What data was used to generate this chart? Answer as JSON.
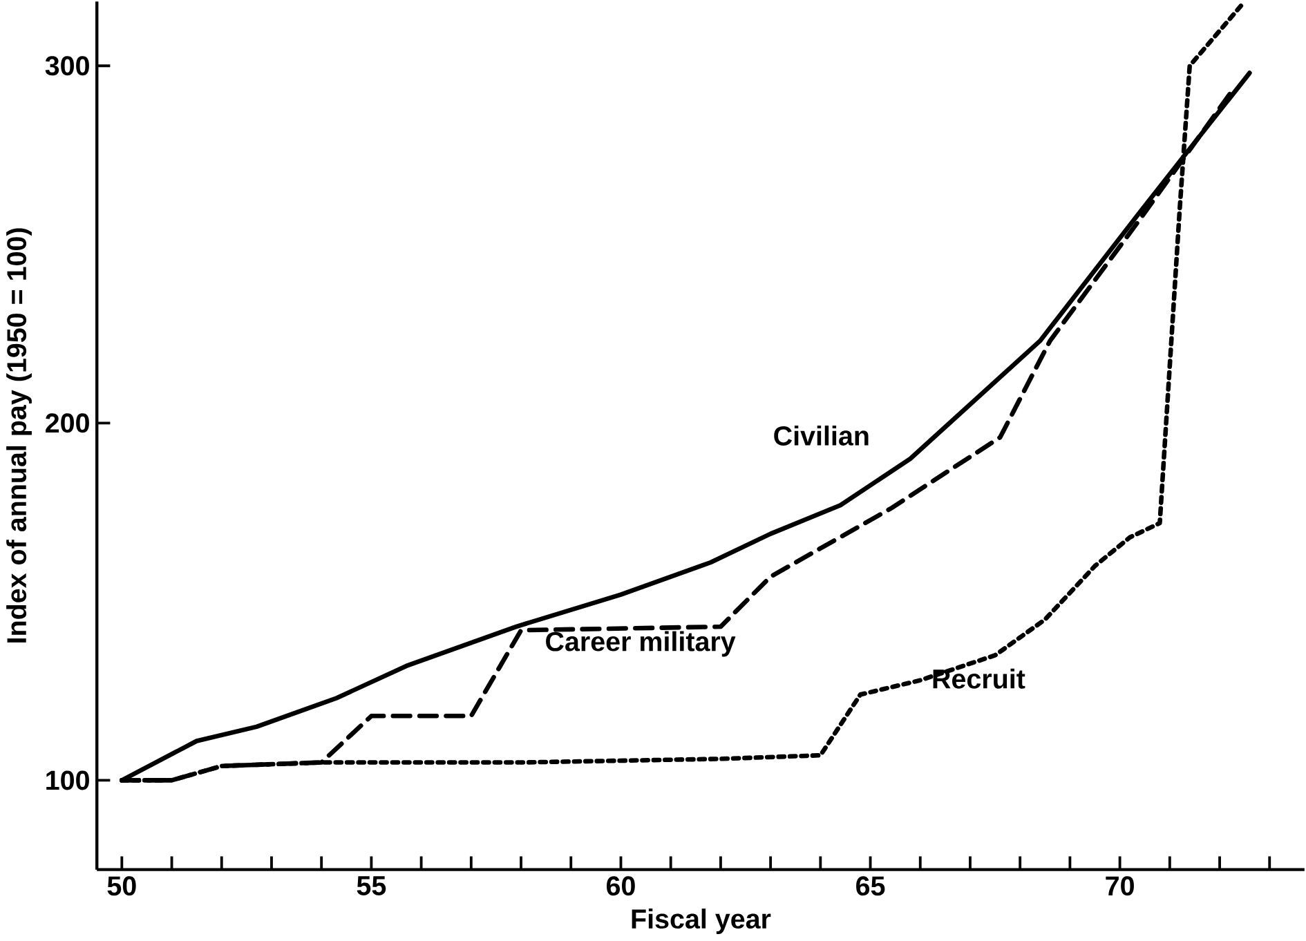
{
  "chart_data": {
    "type": "line",
    "xlabel": "Fiscal year",
    "ylabel": "Index of annual pay (1950 = 100)",
    "xlim": [
      49.5,
      73.7
    ],
    "ylim": [
      75,
      318
    ],
    "xticks": [
      50,
      {
        "value": 51,
        "label": null
      },
      {
        "value": 52,
        "label": null
      },
      {
        "value": 53,
        "label": null
      },
      {
        "value": 54,
        "label": null
      },
      55,
      {
        "value": 56,
        "label": null
      },
      {
        "value": 57,
        "label": null
      },
      {
        "value": 58,
        "label": null
      },
      {
        "value": 59,
        "label": null
      },
      60,
      {
        "value": 61,
        "label": null
      },
      {
        "value": 62,
        "label": null
      },
      {
        "value": 63,
        "label": null
      },
      {
        "value": 64,
        "label": null
      },
      65,
      {
        "value": 66,
        "label": null
      },
      {
        "value": 67,
        "label": null
      },
      {
        "value": 68,
        "label": null
      },
      {
        "value": 69,
        "label": null
      },
      70,
      {
        "value": 71,
        "label": null
      },
      {
        "value": 72,
        "label": null
      },
      {
        "value": 73,
        "label": null
      }
    ],
    "yticks": [
      100,
      200,
      300
    ],
    "grid": false,
    "legend": false,
    "marker": "none",
    "series": [
      {
        "name": "Civilian",
        "color": "#000000",
        "line_style": "solid",
        "x": [
          50,
          51.5,
          52.7,
          54.3,
          55.7,
          57.9,
          60,
          61.8,
          63,
          64.4,
          65.8,
          68.4,
          70.4,
          71.3,
          72.6
        ],
        "values": [
          100,
          111,
          115,
          123,
          132,
          143,
          152,
          161,
          169,
          177,
          190,
          223,
          259,
          275,
          298
        ]
      },
      {
        "name": "Career military",
        "color": "#000000",
        "line_style": "dashed",
        "x": [
          50,
          51,
          52,
          54,
          55,
          57,
          58,
          62,
          63,
          65.4,
          67.6,
          68.6,
          70.4,
          72.3
        ],
        "values": [
          100,
          100,
          104,
          105,
          118,
          118,
          142,
          143,
          157,
          176,
          196,
          223,
          257,
          294
        ]
      },
      {
        "name": "Recruit",
        "color": "#000000",
        "line_style": "dotted",
        "x": [
          50,
          51,
          52,
          54,
          58,
          62,
          64,
          64.8,
          66,
          67.5,
          68.5,
          69.5,
          70.2,
          70.8,
          71.2,
          71.4,
          72.5
        ],
        "values": [
          100,
          100,
          104,
          105,
          105,
          106,
          107,
          124,
          128,
          135,
          145,
          160,
          168,
          172,
          260,
          300,
          318
        ]
      }
    ]
  }
}
